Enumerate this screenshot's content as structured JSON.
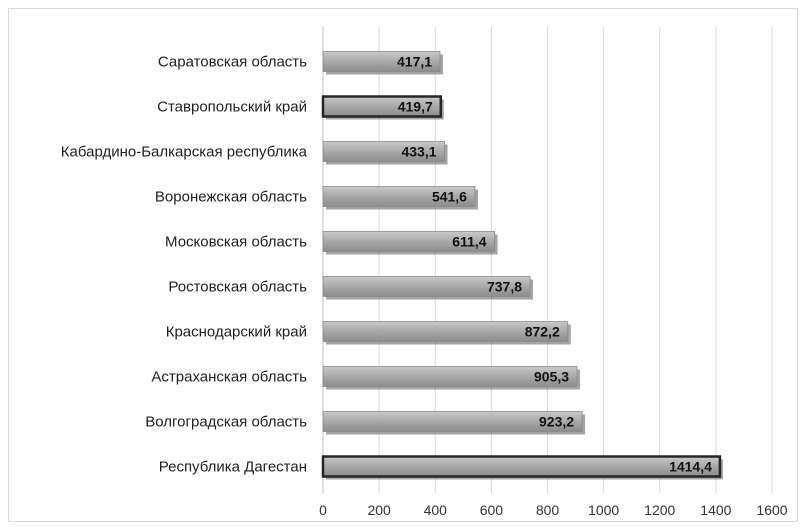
{
  "chart_data": {
    "type": "bar",
    "orientation": "horizontal",
    "categories": [
      "Саратовская область",
      "Ставропольский край",
      "Кабардино-Балкарская республика",
      "Воронежская область",
      "Московская область",
      "Ростовская область",
      "Краснодарский край",
      "Астраханская область",
      "Волгоградская область",
      "Республика Дагестан"
    ],
    "values": [
      417.1,
      419.7,
      433.1,
      541.6,
      611.4,
      737.8,
      872.2,
      905.3,
      923.2,
      1414.4
    ],
    "value_labels": [
      "417,1",
      "419,7",
      "433,1",
      "541,6",
      "611,4",
      "737,8",
      "872,2",
      "905,3",
      "923,2",
      "1414,4"
    ],
    "highlighted": [
      false,
      true,
      false,
      false,
      false,
      false,
      false,
      false,
      false,
      true
    ],
    "xlim": [
      0,
      1600
    ],
    "x_ticks": [
      0,
      200,
      400,
      600,
      800,
      1000,
      1200,
      1400,
      1600
    ],
    "x_tick_labels": [
      "0",
      "200",
      "400",
      "600",
      "800",
      "1000",
      "1200",
      "1400",
      "1600"
    ],
    "title": "",
    "xlabel": "",
    "ylabel": "",
    "grid": "vertical",
    "legend": "none",
    "colors": {
      "bar_fill": "#a6a6a6",
      "bar_shadow": "#595959",
      "highlight_border": "#262626",
      "gridline": "#d9d9d9",
      "axis": "#bfbfbf"
    }
  }
}
